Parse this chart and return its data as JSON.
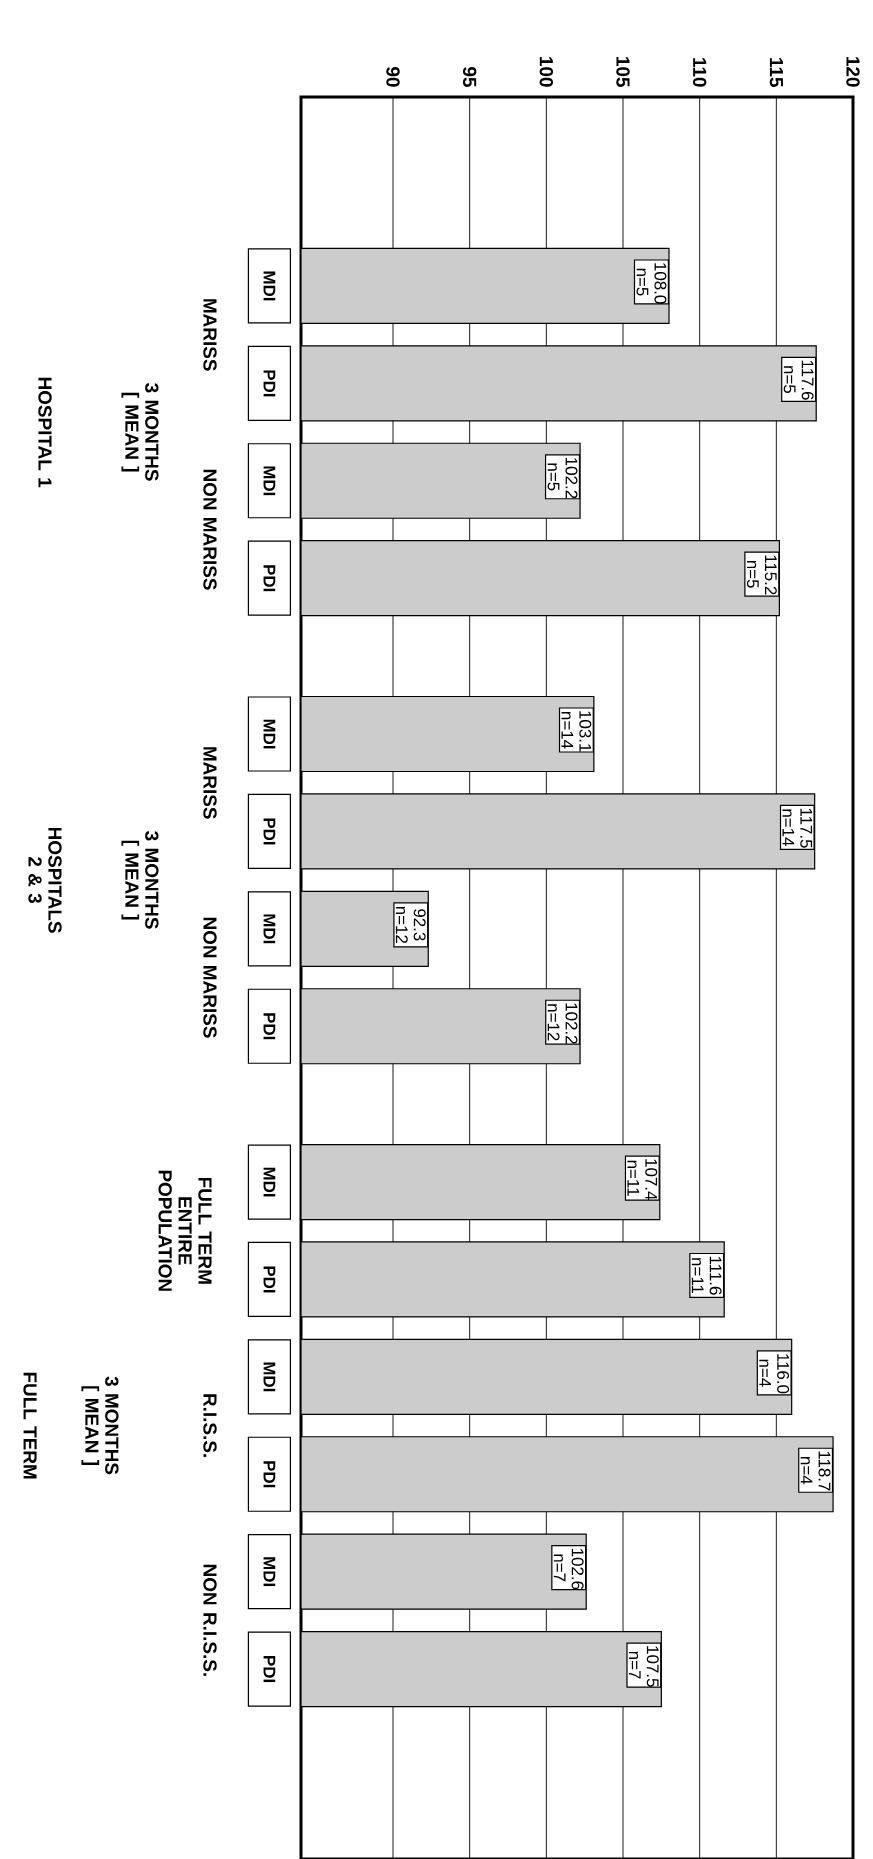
{
  "chart_data": {
    "type": "bar",
    "orientation": "horizontal",
    "categories": [
      "MDI",
      "PDI",
      "MDI",
      "PDI",
      "MDI",
      "PDI",
      "MDI",
      "PDI",
      "MDI",
      "PDI",
      "MDI",
      "PDI",
      "MDI",
      "PDI"
    ],
    "values": [
      108.0,
      117.6,
      102.2,
      115.2,
      103.1,
      117.5,
      92.3,
      102.2,
      107.4,
      111.6,
      116.0,
      118.7,
      102.6,
      107.5
    ],
    "value_labels": [
      "108.0 n=5",
      "117.6 n=5",
      "102.2 n=5",
      "115.2 n=5",
      "103.1 n=14",
      "117.5 n=14",
      "92.3 n=12",
      "102.2 n=12",
      "107.4 n=11",
      "111.6 n=11",
      "116.0 n=4",
      "118.7 n=4",
      "102.6 n=7",
      "107.5 n=7"
    ],
    "color": "#cccccc",
    "xlim": [
      84,
      120
    ],
    "xticks": [
      90,
      95,
      100,
      105,
      110,
      115,
      120
    ],
    "grid": "x",
    "annotations": [
      "MARISS",
      "NON MARISS",
      "3 MONTHS [ MEAN ]",
      "HOSPITAL 1",
      "MARISS",
      "NON MARISS",
      "3 MONTHS [ MEAN ]",
      "HOSPITALS 2 & 3",
      "FULL TERM ENTIRE POPULATION",
      "R.I.S.S.",
      "NON R.I.S.S.",
      "3 MONTHS [ MEAN ]",
      "FULL TERM"
    ]
  }
}
